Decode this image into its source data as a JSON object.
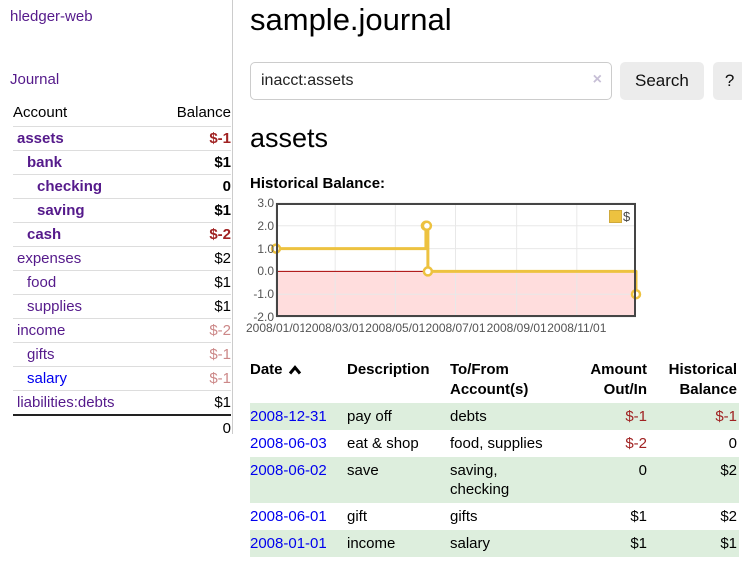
{
  "app": {
    "brand": "hledger-web",
    "nav_journal": "Journal"
  },
  "colors": {
    "accent_purple": "#551a8b",
    "link_blue": "#0000ee",
    "negative_strong": "#a02222",
    "negative_muted": "#cc8888",
    "row_green": "#ddeedd",
    "series_gold": "#edc240",
    "negative_band_pink": "#ffdddd",
    "zero_line_red": "#aa0000"
  },
  "sidebar": {
    "header": {
      "account": "Account",
      "balance": "Balance"
    },
    "accounts": [
      {
        "name": "assets",
        "indent": 1,
        "bold": true,
        "blue": false,
        "balance": "$-1",
        "balance_class": "neg-strong"
      },
      {
        "name": "bank",
        "indent": 2,
        "bold": true,
        "blue": false,
        "balance": "$1",
        "balance_class": ""
      },
      {
        "name": "checking",
        "indent": 3,
        "bold": true,
        "blue": false,
        "balance": "0",
        "balance_class": ""
      },
      {
        "name": "saving",
        "indent": 3,
        "bold": true,
        "blue": false,
        "balance": "$1",
        "balance_class": ""
      },
      {
        "name": "cash",
        "indent": 2,
        "bold": true,
        "blue": false,
        "balance": "$-2",
        "balance_class": "neg-strong"
      },
      {
        "name": "expenses",
        "indent": 1,
        "bold": false,
        "blue": false,
        "balance": "$2",
        "balance_class": ""
      },
      {
        "name": "food",
        "indent": 2,
        "bold": false,
        "blue": false,
        "balance": "$1",
        "balance_class": ""
      },
      {
        "name": "supplies",
        "indent": 2,
        "bold": false,
        "blue": false,
        "balance": "$1",
        "balance_class": ""
      },
      {
        "name": "income",
        "indent": 1,
        "bold": false,
        "blue": false,
        "balance": "$-2",
        "balance_class": "neg-muted"
      },
      {
        "name": "gifts",
        "indent": 2,
        "bold": false,
        "blue": false,
        "balance": "$-1",
        "balance_class": "neg-muted"
      },
      {
        "name": "salary",
        "indent": 2,
        "bold": false,
        "blue": true,
        "balance": "$-1",
        "balance_class": "neg-muted"
      },
      {
        "name": "liabilities:debts",
        "indent": 1,
        "bold": false,
        "blue": false,
        "balance": "$1",
        "balance_class": ""
      }
    ],
    "total": "0"
  },
  "main": {
    "title": "sample.journal",
    "search": {
      "value": "inacct:assets",
      "clear_icon": "×",
      "button": "Search",
      "help_button": "?"
    },
    "account_heading": "assets",
    "chart_label": "Historical Balance:",
    "table": {
      "headers": {
        "date": "Date",
        "description": "Description",
        "accounts": "To/From Account(s)",
        "amount": "Amount Out/In",
        "balance": "Historical Balance"
      },
      "rows": [
        {
          "date": "2008-12-31",
          "description": "pay off",
          "accounts": "debts",
          "amount": "$-1",
          "amount_negative": true,
          "balance": "$-1",
          "balance_negative": true
        },
        {
          "date": "2008-06-03",
          "description": "eat & shop",
          "accounts": "food, supplies",
          "amount": "$-2",
          "amount_negative": true,
          "balance": "0",
          "balance_negative": false
        },
        {
          "date": "2008-06-02",
          "description": "save",
          "accounts": "saving, checking",
          "amount": "0",
          "amount_negative": false,
          "balance": "$2",
          "balance_negative": false
        },
        {
          "date": "2008-06-01",
          "description": "gift",
          "accounts": "gifts",
          "amount": "$1",
          "amount_negative": false,
          "balance": "$2",
          "balance_negative": false
        },
        {
          "date": "2008-01-01",
          "description": "income",
          "accounts": "salary",
          "amount": "$1",
          "amount_negative": false,
          "balance": "$1",
          "balance_negative": false
        }
      ]
    }
  },
  "chart_data": {
    "type": "line",
    "style": "step",
    "title": "Historical Balance:",
    "xlim": [
      "2008-01-01",
      "2008-12-31"
    ],
    "ylim": [
      -2.0,
      3.0
    ],
    "grid": true,
    "series": [
      {
        "name": "$",
        "color": "#edc240",
        "points": [
          {
            "date": "2008-01-01",
            "value": 1
          },
          {
            "date": "2008-06-01",
            "value": 2
          },
          {
            "date": "2008-06-02",
            "value": 2
          },
          {
            "date": "2008-06-03",
            "value": 0
          },
          {
            "date": "2008-12-31",
            "value": -1
          }
        ]
      }
    ],
    "y_ticks": [
      {
        "value": 3.0,
        "label": "3.0"
      },
      {
        "value": 2.0,
        "label": "2.0"
      },
      {
        "value": 1.0,
        "label": "1.0"
      },
      {
        "value": 0.0,
        "label": "0.0"
      },
      {
        "value": -1.0,
        "label": "-1.0"
      },
      {
        "value": -2.0,
        "label": "-2.0"
      }
    ],
    "x_ticks": [
      {
        "date": "2008-01-01",
        "label": "2008/01/01"
      },
      {
        "date": "2008-03-01",
        "label": "2008/03/01"
      },
      {
        "date": "2008-05-01",
        "label": "2008/05/01"
      },
      {
        "date": "2008-07-01",
        "label": "2008/07/01"
      },
      {
        "date": "2008-09-01",
        "label": "2008/09/01"
      },
      {
        "date": "2008-11-01",
        "label": "2008/11/01"
      }
    ],
    "legend": {
      "label": "$",
      "position": "top-right"
    },
    "zero_line_color": "#aa0000",
    "negative_region_color": "#ffdddd",
    "grid_color": "#e8e8e8",
    "border_color": "#454545"
  }
}
